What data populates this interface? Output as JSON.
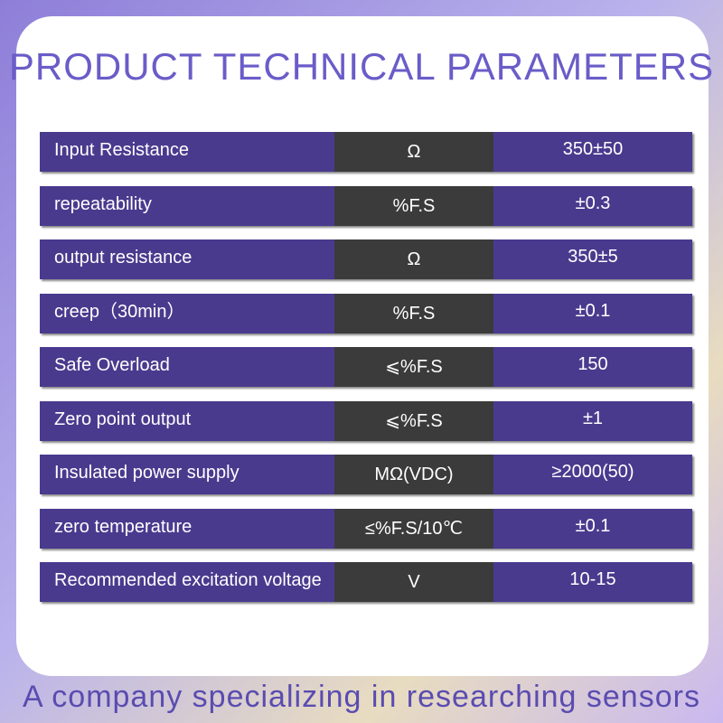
{
  "header": {
    "title": "PRODUCT TECHNICAL PARAMETERS"
  },
  "table": {
    "rows": [
      [
        "Input Resistance",
        "Ω",
        "350±50"
      ],
      [
        "repeatability",
        "%F.S",
        "±0.3"
      ],
      [
        "output resistance",
        "Ω",
        "350±5"
      ],
      [
        "creep（30min）",
        "%F.S",
        "±0.1"
      ],
      [
        "Safe Overload",
        "⩽%F.S",
        "150"
      ],
      [
        "Zero point output",
        "⩽%F.S",
        "±1"
      ],
      [
        "Insulated power supply",
        "MΩ(VDC)",
        "≥2000(50)"
      ],
      [
        "zero temperature",
        "≤%F.S/10℃",
        "±0.1"
      ],
      [
        "Recommended excitation voltage",
        "V",
        "10-15"
      ]
    ]
  },
  "footer": {
    "text": "A company specializing in researching sensors"
  }
}
